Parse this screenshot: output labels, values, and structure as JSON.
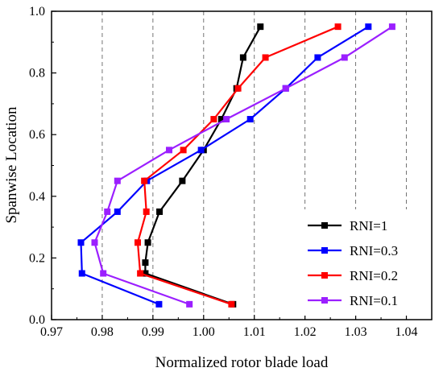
{
  "chart_data": {
    "type": "line",
    "title": "",
    "xlabel": "Normalized rotor blade load",
    "ylabel": "Spanwise Location",
    "xlim": [
      0.97,
      1.045
    ],
    "ylim": [
      0.0,
      1.0
    ],
    "x_ticks": [
      0.97,
      0.98,
      0.99,
      1.0,
      1.01,
      1.02,
      1.03,
      1.04
    ],
    "x_tick_labels": [
      "0.97",
      "0.98",
      "0.99",
      "1.00",
      "1.01",
      "1.02",
      "1.03",
      "1.04"
    ],
    "y_ticks": [
      0.0,
      0.2,
      0.4,
      0.6,
      0.8,
      1.0
    ],
    "y_tick_labels": [
      "0.0",
      "0.2",
      "0.4",
      "0.6",
      "0.8",
      "1.0"
    ],
    "grid": "vertical dashed",
    "legend_position": "bottom-right",
    "series": [
      {
        "name": "RNI=1",
        "color": "#000000",
        "marker": "square",
        "x": [
          1.0058,
          0.9885,
          0.9885,
          0.989,
          0.9913,
          0.9958,
          1.0,
          1.0035,
          1.0065,
          1.0078,
          1.0112
        ],
        "y": [
          0.05,
          0.15,
          0.185,
          0.25,
          0.35,
          0.45,
          0.55,
          0.65,
          0.75,
          0.85,
          0.95
        ]
      },
      {
        "name": "RNI=0.3",
        "color": "#0000ff",
        "marker": "square",
        "x": [
          0.9912,
          0.976,
          0.9758,
          0.983,
          0.9888,
          0.9995,
          1.0092,
          1.0162,
          1.0225,
          1.0325
        ],
        "y": [
          0.05,
          0.15,
          0.25,
          0.35,
          0.45,
          0.55,
          0.65,
          0.75,
          0.85,
          0.95
        ]
      },
      {
        "name": "RNI=0.2",
        "color": "#ff0000",
        "marker": "square",
        "x": [
          1.0055,
          0.9875,
          0.987,
          0.9887,
          0.9883,
          0.996,
          1.002,
          1.0068,
          1.0122,
          1.0265
        ],
        "y": [
          0.05,
          0.15,
          0.25,
          0.35,
          0.45,
          0.55,
          0.65,
          0.75,
          0.85,
          0.95
        ]
      },
      {
        "name": "RNI=0.1",
        "color": "#9b1fff",
        "marker": "square",
        "x": [
          0.9972,
          0.9802,
          0.9785,
          0.981,
          0.983,
          0.9932,
          1.0045,
          1.0162,
          1.0278,
          1.0372
        ],
        "y": [
          0.05,
          0.15,
          0.25,
          0.35,
          0.45,
          0.55,
          0.65,
          0.75,
          0.85,
          0.95
        ]
      }
    ]
  }
}
